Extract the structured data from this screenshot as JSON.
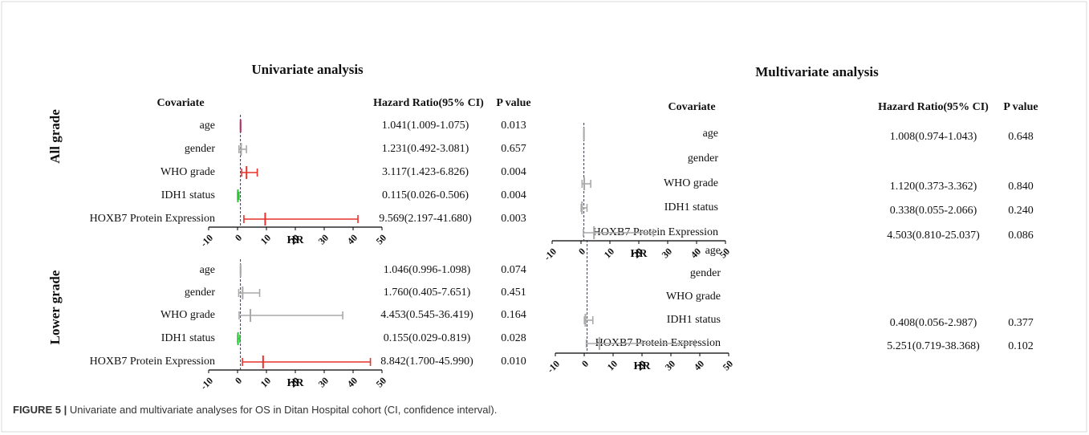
{
  "chart_data": [
    {
      "type": "forest",
      "title": "Univariate analysis",
      "headers": [
        "Covariate",
        "Hazard Ratio(95% CI)",
        "P value"
      ],
      "categories": [
        "age",
        "gender",
        "WHO grade",
        "IDH1 status",
        "HOXB7 Protein Expression"
      ],
      "values": [
        1.041,
        1.231,
        3.117,
        0.115,
        9.569
      ],
      "lower": [
        1.009,
        0.492,
        1.423,
        0.026,
        2.197
      ],
      "upper": [
        1.075,
        3.081,
        6.826,
        0.506,
        41.68
      ],
      "value_labels": [
        "1.041(1.009-1.075)",
        "1.231(0.492-3.081)",
        "3.117(1.423-6.826)",
        "0.115(0.026-0.506)",
        "9.569(2.197-41.680)"
      ],
      "p_values": [
        "0.013",
        "0.657",
        "0.004",
        "0.004",
        "0.003"
      ],
      "colors": [
        "#b0306a",
        "#a9a9a9",
        "#e8322b",
        "#2fbf3a",
        "#e8322b"
      ],
      "xlim": [
        -10,
        50
      ],
      "xticks": [
        -10,
        0,
        10,
        20,
        30,
        40,
        50
      ],
      "xlabel": "HR",
      "reference_line": 1
    },
    {
      "type": "forest",
      "title": "Multivariate analysis",
      "headers": [
        "Covariate",
        "Hazard Ratio(95% CI)",
        "P value"
      ],
      "categories": [
        "age",
        "gender",
        "WHO grade",
        "IDH1 status",
        "HOXB7 Protein Expression"
      ],
      "values": [
        1.008,
        null,
        1.12,
        0.338,
        4.503
      ],
      "lower": [
        0.974,
        null,
        0.373,
        0.055,
        0.81
      ],
      "upper": [
        1.043,
        null,
        3.362,
        2.066,
        25.037
      ],
      "value_labels": [
        "1.008(0.974-1.043)",
        null,
        "1.120(0.373-3.362)",
        "0.338(0.055-2.066)",
        "4.503(0.810-25.037)"
      ],
      "p_values": [
        "0.648",
        null,
        "0.840",
        "0.240",
        "0.086"
      ],
      "colors": [
        "#a9a9a9",
        null,
        "#a9a9a9",
        "#a9a9a9",
        "#a9a9a9"
      ],
      "xlim": [
        -10,
        50
      ],
      "xticks": [
        -10,
        0,
        10,
        20,
        30,
        40,
        50
      ],
      "xlabel": "HR",
      "reference_line": 1
    },
    {
      "type": "forest",
      "categories": [
        "age",
        "gender",
        "WHO grade",
        "IDH1 status",
        "HOXB7 Protein Expression"
      ],
      "values": [
        1.046,
        1.76,
        4.453,
        0.155,
        8.842
      ],
      "lower": [
        0.996,
        0.405,
        0.545,
        0.029,
        1.7
      ],
      "upper": [
        1.098,
        7.651,
        36.419,
        0.819,
        45.99
      ],
      "value_labels": [
        "1.046(0.996-1.098)",
        "1.760(0.405-7.651)",
        "4.453(0.545-36.419)",
        "0.155(0.029-0.819)",
        "8.842(1.700-45.990)"
      ],
      "p_values": [
        "0.074",
        "0.451",
        "0.164",
        "0.028",
        "0.010"
      ],
      "colors": [
        "#a9a9a9",
        "#a9a9a9",
        "#a9a9a9",
        "#2fbf3a",
        "#e8322b"
      ],
      "xlim": [
        -10,
        50
      ],
      "xticks": [
        -10,
        0,
        10,
        20,
        30,
        40,
        50
      ],
      "xlabel": "HR",
      "reference_line": 1
    },
    {
      "type": "forest",
      "categories": [
        "age",
        "gender",
        "WHO grade",
        "IDH1 status",
        "HOXB7 Protein Expression"
      ],
      "values": [
        null,
        null,
        null,
        0.408,
        5.251
      ],
      "lower": [
        null,
        null,
        null,
        0.056,
        0.719
      ],
      "upper": [
        null,
        null,
        null,
        2.987,
        38.368
      ],
      "value_labels": [
        null,
        null,
        null,
        "0.408(0.056-2.987)",
        "5.251(0.719-38.368)"
      ],
      "p_values": [
        null,
        null,
        null,
        "0.377",
        "0.102"
      ],
      "colors": [
        null,
        null,
        null,
        "#a9a9a9",
        "#a9a9a9"
      ],
      "xlim": [
        -10,
        50
      ],
      "xticks": [
        -10,
        0,
        10,
        20,
        30,
        40,
        50
      ],
      "xlabel": "HR",
      "reference_line": 1
    }
  ],
  "row_titles": [
    "All grade",
    "Lower grade"
  ],
  "caption": {
    "label": "FIGURE 5 |",
    "text": "Univariate and multivariate analyses for OS in Ditan Hospital cohort (CI, confidence interval)."
  }
}
